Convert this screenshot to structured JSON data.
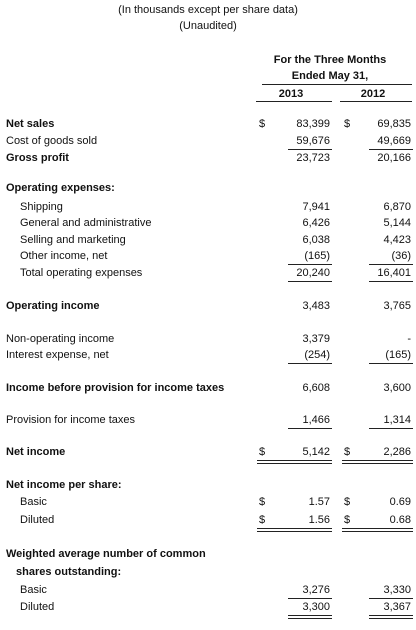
{
  "header": {
    "lines": [
      "(In thousands except per share data)",
      "(Unaudited)"
    ]
  },
  "columns": {
    "period": [
      "For the Three Months",
      "Ended May 31,"
    ],
    "years": [
      "2013",
      "2012"
    ]
  },
  "table": {
    "rows": [
      {
        "label": "Net sales",
        "symbols": [
          "$",
          "$"
        ],
        "values": [
          "83,399",
          "69,835"
        ]
      },
      {
        "label": "Cost of goods sold",
        "values": [
          "59,676",
          "49,669"
        ]
      },
      {
        "label": "Gross profit",
        "values": [
          "23,723",
          "20,166"
        ]
      },
      {
        "label": "Operating expenses:"
      },
      {
        "label": "Shipping",
        "values": [
          "7,941",
          "6,870"
        ]
      },
      {
        "label": "General and administrative",
        "values": [
          "6,426",
          "5,144"
        ]
      },
      {
        "label": "Selling and marketing",
        "values": [
          "6,038",
          "4,423"
        ]
      },
      {
        "label": "Other income, net",
        "values": [
          "(165)",
          "(36)"
        ]
      },
      {
        "label": "Total operating expenses",
        "values": [
          "20,240",
          "16,401"
        ]
      },
      {
        "label": "Operating income",
        "values": [
          "3,483",
          "3,765"
        ]
      },
      {
        "label": "Non-operating income",
        "values": [
          "3,379",
          "-"
        ]
      },
      {
        "label": "Interest expense, net",
        "values": [
          "(254)",
          "(165)"
        ]
      },
      {
        "label": "Income before provision for income taxes",
        "values": [
          "6,608",
          "3,600"
        ]
      },
      {
        "label": "Provision for income taxes",
        "values": [
          "1,466",
          "1,314"
        ]
      },
      {
        "label": "Net income",
        "symbols": [
          "$",
          "$"
        ],
        "values": [
          "5,142",
          "2,286"
        ]
      },
      {
        "label": "Net income per share:"
      },
      {
        "label": "Basic",
        "symbols": [
          "$",
          "$"
        ],
        "values": [
          "1.57",
          "0.69"
        ]
      },
      {
        "label": "Diluted",
        "symbols": [
          "$",
          "$"
        ],
        "values": [
          "1.56",
          "0.68"
        ]
      },
      {
        "label": "Weighted average number of common"
      },
      {
        "label": "shares outstanding:"
      },
      {
        "label": "Basic",
        "values": [
          "3,276",
          "3,330"
        ]
      },
      {
        "label": "Diluted",
        "values": [
          "3,300",
          "3,367"
        ]
      }
    ]
  }
}
